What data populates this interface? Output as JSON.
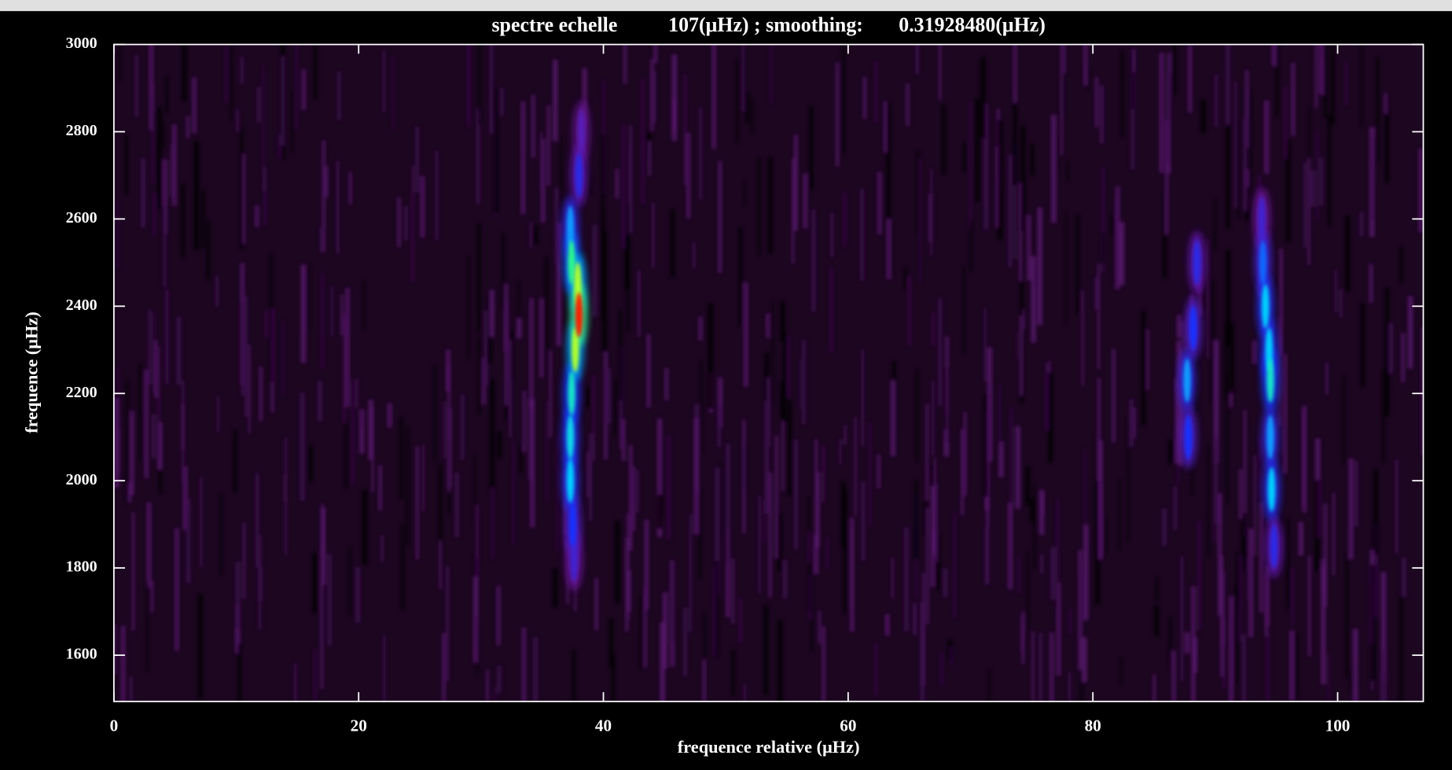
{
  "chart_data": {
    "type": "heatmap",
    "title": "spectre echelle          107(μHz) ; smoothing:       0.31928480(μHz)",
    "x_label": "frequence relative (μHz)",
    "y_label": "frequence (μHz)",
    "xlim": [
      0,
      107
    ],
    "xticks": [
      0,
      20,
      40,
      60,
      80,
      100
    ],
    "ylim": [
      1494,
      3000
    ],
    "yticks": [
      1600,
      1800,
      2000,
      2200,
      2400,
      2600,
      2800,
      3000
    ],
    "x": [
      37.6,
      37.5,
      37.3,
      37.3,
      37.4,
      37.7,
      38.0,
      37.9,
      37.4,
      37.3,
      38.0,
      38.2,
      87.8,
      87.7,
      88.2,
      88.5,
      94.8,
      94.6,
      94.5,
      94.5,
      94.4,
      94.1,
      93.9,
      93.8
    ],
    "y": [
      1820,
      1900,
      2000,
      2100,
      2200,
      2300,
      2380,
      2450,
      2500,
      2580,
      2700,
      2800,
      2100,
      2230,
      2350,
      2500,
      1850,
      1980,
      2100,
      2230,
      2300,
      2400,
      2500,
      2600
    ],
    "values": [
      0.35,
      0.45,
      0.6,
      0.62,
      0.65,
      0.8,
      1.0,
      0.8,
      0.7,
      0.55,
      0.4,
      0.3,
      0.45,
      0.55,
      0.45,
      0.4,
      0.4,
      0.6,
      0.55,
      0.65,
      0.6,
      0.6,
      0.5,
      0.35
    ]
  }
}
